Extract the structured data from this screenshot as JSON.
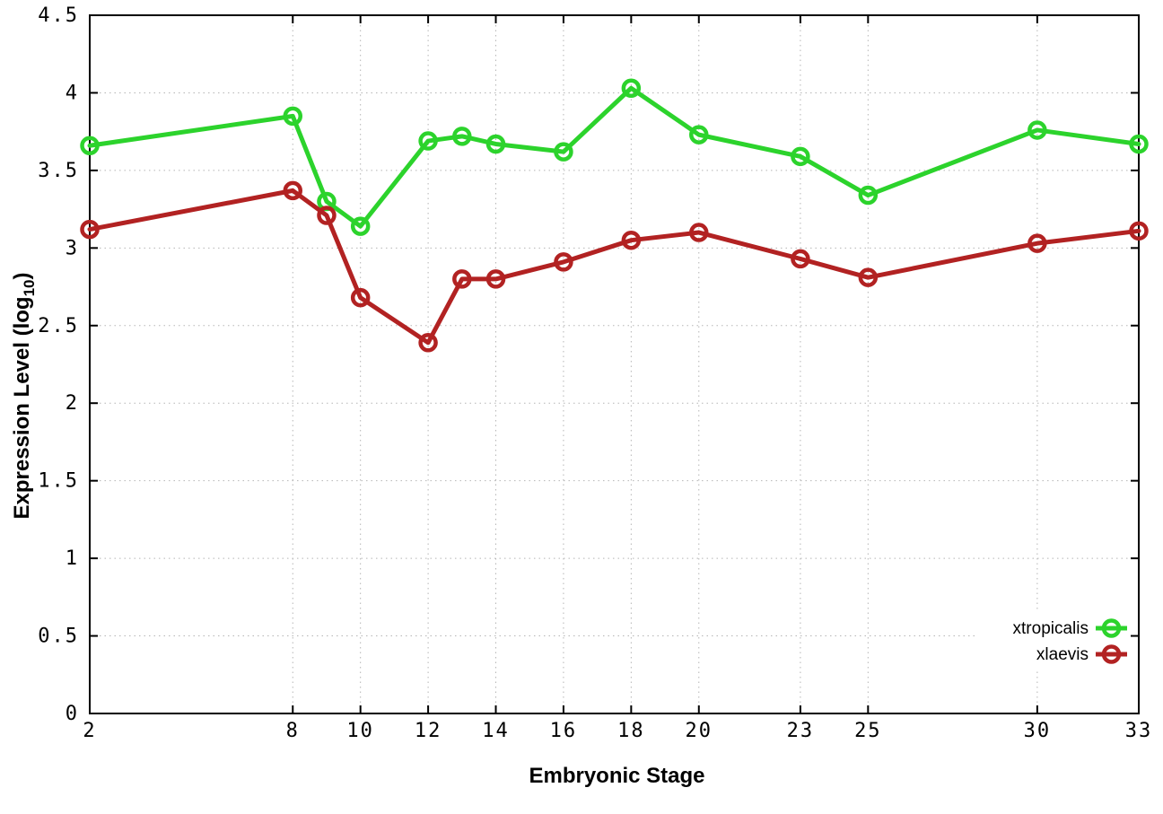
{
  "chart_data": {
    "type": "line",
    "title": "",
    "xlabel": "Embryonic Stage",
    "ylabel": "Expression Level (log10)",
    "ylabel_parts": {
      "main": "Expression Level (log",
      "sub": "10",
      "end": ")"
    },
    "x": [
      2,
      8,
      9,
      10,
      12,
      13,
      14,
      16,
      18,
      20,
      23,
      25,
      30,
      33
    ],
    "series": [
      {
        "name": "xtropicalis",
        "color": "#2cd32c",
        "values": [
          3.66,
          3.85,
          3.3,
          3.14,
          3.69,
          3.72,
          3.67,
          3.62,
          4.03,
          3.73,
          3.59,
          3.34,
          3.76,
          3.67
        ]
      },
      {
        "name": "xlaevis",
        "color": "#b22222",
        "values": [
          3.12,
          3.37,
          3.21,
          2.68,
          2.39,
          2.8,
          2.8,
          2.91,
          3.05,
          3.1,
          2.93,
          2.81,
          3.03,
          3.11
        ]
      }
    ],
    "xticks": [
      2,
      8,
      10,
      12,
      14,
      16,
      18,
      20,
      23,
      25,
      30,
      33
    ],
    "yticks": [
      0,
      0.5,
      1,
      1.5,
      2,
      2.5,
      3,
      3.5,
      4,
      4.5
    ],
    "xlim": [
      2,
      33
    ],
    "ylim": [
      0,
      4.5
    ],
    "grid": true,
    "legend_position": "bottom-right",
    "marker": "open-circle",
    "colors": {
      "axis": "#000000",
      "grid": "#b5b5b5",
      "background": "#ffffff"
    }
  }
}
